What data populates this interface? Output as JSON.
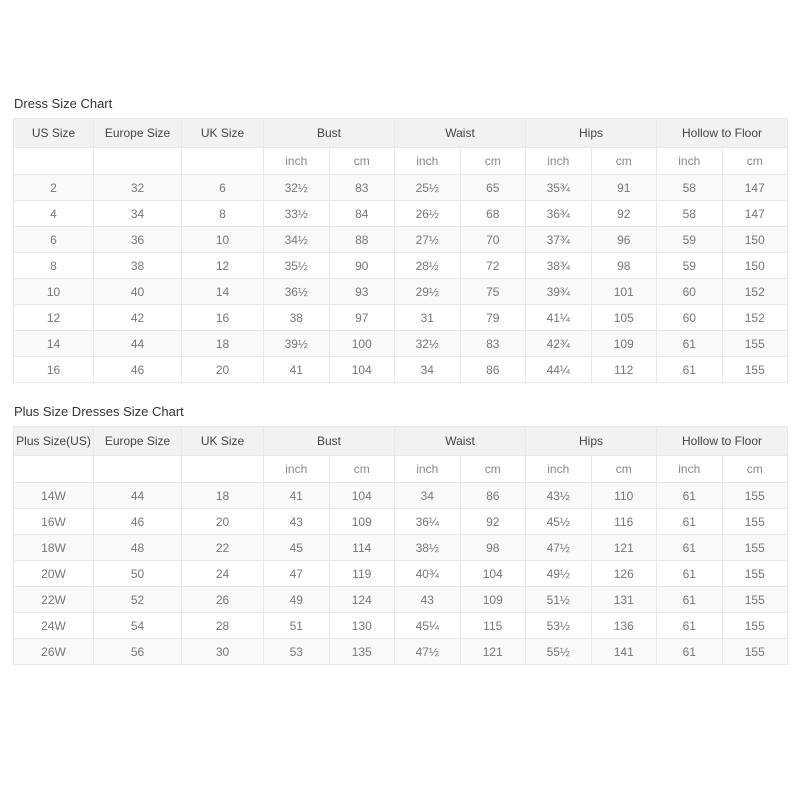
{
  "colors": {
    "header_bg": "#f2f2f2",
    "row_alt_bg": "#f9f9f9",
    "row_bg": "#ffffff",
    "border": "#e8e8e8",
    "title_text": "#333333",
    "header_text": "#444444",
    "cell_text": "#777777"
  },
  "tables": [
    {
      "title": "Dress Size Chart",
      "label_columns": [
        "US Size",
        "Europe Size",
        "UK Size"
      ],
      "group_columns": [
        "Bust",
        "Waist",
        "Hips",
        "Hollow to Floor"
      ],
      "unit_labels": [
        "inch",
        "cm",
        "inch",
        "cm",
        "inch",
        "cm",
        "inch",
        "cm"
      ],
      "rows": [
        [
          "2",
          "32",
          "6",
          "32½",
          "83",
          "25½",
          "65",
          "35¾",
          "91",
          "58",
          "147"
        ],
        [
          "4",
          "34",
          "8",
          "33½",
          "84",
          "26½",
          "68",
          "36¾",
          "92",
          "58",
          "147"
        ],
        [
          "6",
          "36",
          "10",
          "34½",
          "88",
          "27½",
          "70",
          "37¾",
          "96",
          "59",
          "150"
        ],
        [
          "8",
          "38",
          "12",
          "35½",
          "90",
          "28½",
          "72",
          "38¾",
          "98",
          "59",
          "150"
        ],
        [
          "10",
          "40",
          "14",
          "36½",
          "93",
          "29½",
          "75",
          "39¾",
          "101",
          "60",
          "152"
        ],
        [
          "12",
          "42",
          "16",
          "38",
          "97",
          "31",
          "79",
          "41¼",
          "105",
          "60",
          "152"
        ],
        [
          "14",
          "44",
          "18",
          "39½",
          "100",
          "32½",
          "83",
          "42¾",
          "109",
          "61",
          "155"
        ],
        [
          "16",
          "46",
          "20",
          "41",
          "104",
          "34",
          "86",
          "44¼",
          "112",
          "61",
          "155"
        ]
      ]
    },
    {
      "title": "Plus Size Dresses Size Chart",
      "label_columns": [
        "Plus Size(US)",
        "Europe Size",
        "UK Size"
      ],
      "group_columns": [
        "Bust",
        "Waist",
        "Hips",
        "Hollow to Floor"
      ],
      "unit_labels": [
        "inch",
        "cm",
        "inch",
        "cm",
        "inch",
        "cm",
        "inch",
        "cm"
      ],
      "rows": [
        [
          "14W",
          "44",
          "18",
          "41",
          "104",
          "34",
          "86",
          "43½",
          "110",
          "61",
          "155"
        ],
        [
          "16W",
          "46",
          "20",
          "43",
          "109",
          "36¼",
          "92",
          "45½",
          "116",
          "61",
          "155"
        ],
        [
          "18W",
          "48",
          "22",
          "45",
          "114",
          "38½",
          "98",
          "47½",
          "121",
          "61",
          "155"
        ],
        [
          "20W",
          "50",
          "24",
          "47",
          "119",
          "40¾",
          "104",
          "49½",
          "126",
          "61",
          "155"
        ],
        [
          "22W",
          "52",
          "26",
          "49",
          "124",
          "43",
          "109",
          "51½",
          "131",
          "61",
          "155"
        ],
        [
          "24W",
          "54",
          "28",
          "51",
          "130",
          "45¼",
          "115",
          "53½",
          "136",
          "61",
          "155"
        ],
        [
          "26W",
          "56",
          "30",
          "53",
          "135",
          "47½",
          "121",
          "55½",
          "141",
          "61",
          "155"
        ]
      ]
    }
  ]
}
